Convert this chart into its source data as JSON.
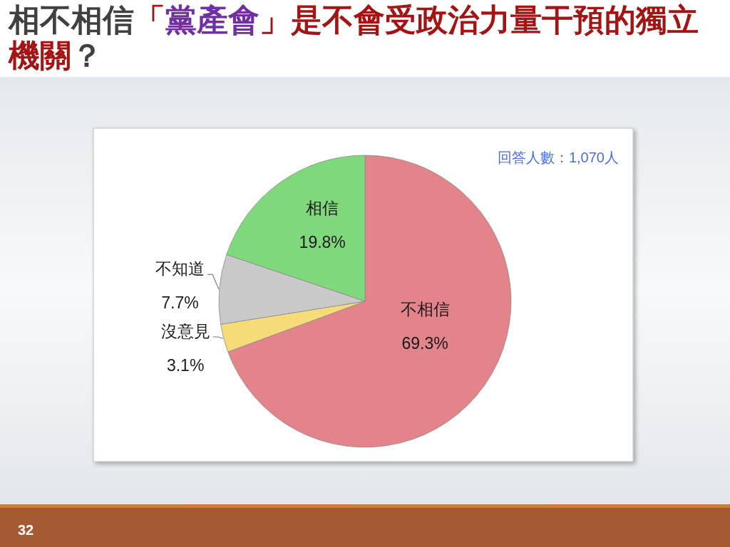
{
  "chart_data": {
    "type": "pie",
    "title": "相不相信「黨產會」是不會受政治力量干預的獨立機關？",
    "categories": [
      "不相信",
      "沒意見",
      "不知道",
      "相信"
    ],
    "values": [
      69.3,
      3.1,
      7.7,
      19.8
    ],
    "colors": [
      "#e3838a",
      "#f6dc78",
      "#c9c9c9",
      "#7fd87b"
    ],
    "value_labels": [
      "69.3%",
      "3.1%",
      "7.7%",
      "19.8%"
    ],
    "annotations": [
      "回答人數：1,070人",
      "32"
    ]
  }
}
